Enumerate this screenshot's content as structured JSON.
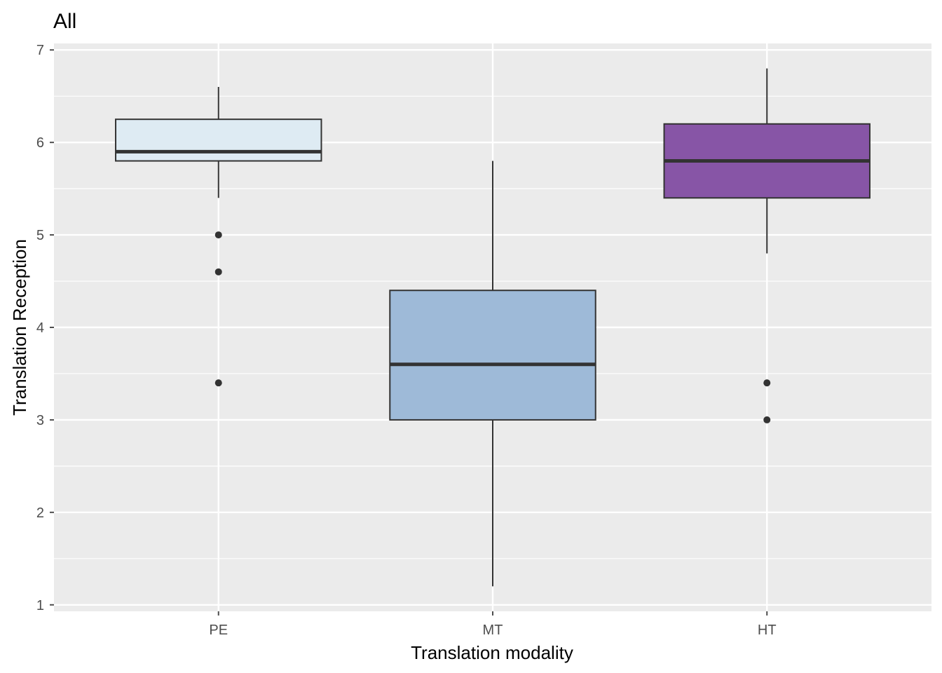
{
  "chart_data": {
    "type": "boxplot",
    "title": "All",
    "xlabel": "Translation modality",
    "ylabel": "Translation Reception",
    "ylim": [
      0.93,
      7.07
    ],
    "yticks": [
      1,
      2,
      3,
      4,
      5,
      6,
      7
    ],
    "grid": true,
    "categories": [
      "PE",
      "MT",
      "HT"
    ],
    "boxes": [
      {
        "name": "PE",
        "whisker_low": 5.4,
        "q1": 5.8,
        "median": 5.9,
        "q3": 6.25,
        "whisker_high": 6.6,
        "outliers": [
          5.0,
          4.6,
          3.4
        ],
        "fill": "#deebf3"
      },
      {
        "name": "MT",
        "whisker_low": 1.2,
        "q1": 3.0,
        "median": 3.6,
        "q3": 4.4,
        "whisker_high": 5.8,
        "outliers": [],
        "fill": "#9ebad8"
      },
      {
        "name": "HT",
        "whisker_low": 4.8,
        "q1": 5.4,
        "median": 5.8,
        "q3": 6.2,
        "whisker_high": 6.8,
        "outliers": [
          3.4,
          3.0
        ],
        "fill": "#8755a6"
      }
    ],
    "colors": {
      "panel": "#ebebeb",
      "grid": "#ffffff",
      "outline": "#333333",
      "tick": "#4d4d4d"
    }
  }
}
